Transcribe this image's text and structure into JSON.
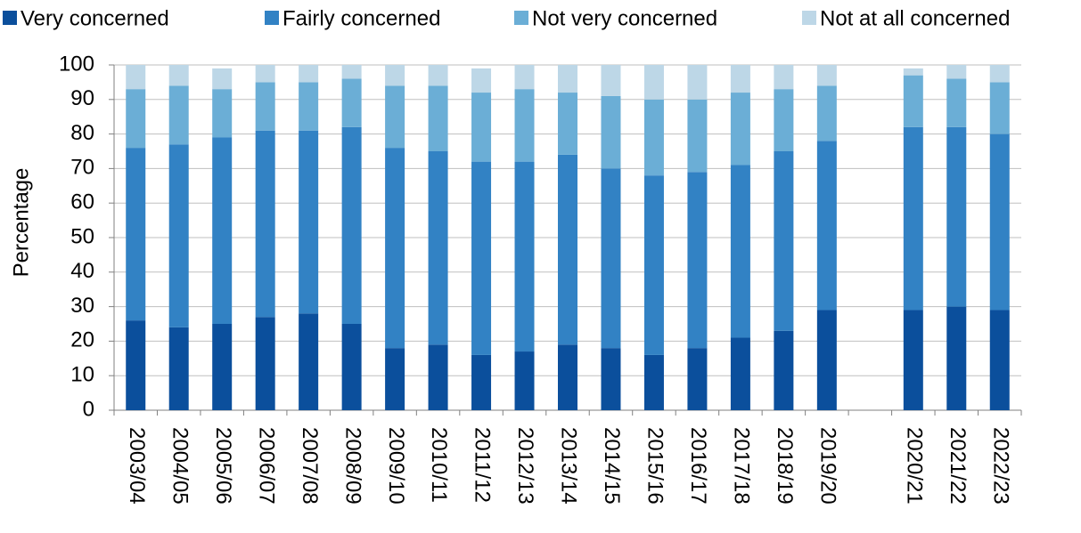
{
  "chart_data": {
    "type": "stacked_bar",
    "y_label": "Percentage",
    "categories": [
      "2003/04",
      "2004/05",
      "2005/06",
      "2006/07",
      "2007/08",
      "2008/09",
      "2009/10",
      "2010/11",
      "2011/12",
      "2012/13",
      "2013/14",
      "2014/15",
      "2015/16",
      "2016/17",
      "2017/18",
      "2018/19",
      "2019/20",
      null,
      "2020/21",
      "2021/22",
      "2022/23"
    ],
    "series": [
      {
        "name": "Very concerned",
        "color": "#0b4f9c",
        "values": [
          26,
          24,
          25,
          27,
          28,
          25,
          18,
          19,
          16,
          17,
          19,
          18,
          16,
          18,
          21,
          23,
          29,
          null,
          29,
          30,
          29
        ]
      },
      {
        "name": "Fairly concerned",
        "color": "#3282c4",
        "values": [
          50,
          53,
          54,
          54,
          53,
          57,
          58,
          56,
          56,
          55,
          55,
          52,
          52,
          51,
          50,
          52,
          49,
          null,
          53,
          52,
          51
        ]
      },
      {
        "name": "Not very concerned",
        "color": "#6baed6",
        "values": [
          17,
          17,
          14,
          14,
          14,
          14,
          18,
          19,
          20,
          21,
          18,
          21,
          22,
          21,
          21,
          18,
          16,
          null,
          15,
          14,
          15
        ]
      },
      {
        "name": "Not at all concerned",
        "color": "#bdd7e7",
        "values": [
          7,
          6,
          6,
          5,
          5,
          4,
          6,
          6,
          7,
          7,
          8,
          9,
          10,
          10,
          8,
          7,
          6,
          null,
          2,
          4,
          5
        ]
      }
    ],
    "ylim": [
      0,
      100
    ],
    "yticks": [
      0,
      10,
      20,
      30,
      40,
      50,
      60,
      70,
      80,
      90,
      100
    ],
    "grid": true,
    "legend": "top"
  }
}
